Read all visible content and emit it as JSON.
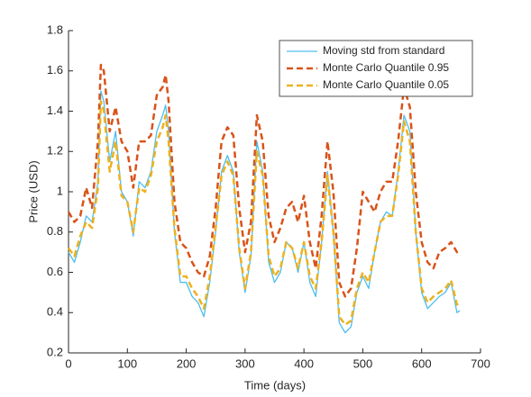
{
  "chart_data": {
    "type": "line",
    "xlabel": "Time (days)",
    "ylabel": "Price (USD)",
    "x": [
      0,
      10,
      20,
      30,
      40,
      50,
      55,
      60,
      70,
      80,
      90,
      100,
      110,
      120,
      130,
      140,
      150,
      160,
      165,
      170,
      180,
      190,
      200,
      210,
      220,
      230,
      240,
      250,
      260,
      270,
      280,
      290,
      300,
      310,
      320,
      330,
      340,
      350,
      360,
      370,
      380,
      390,
      400,
      410,
      420,
      430,
      440,
      450,
      460,
      470,
      480,
      490,
      500,
      510,
      520,
      530,
      540,
      550,
      560,
      570,
      580,
      590,
      600,
      610,
      620,
      630,
      640,
      650,
      660,
      665
    ],
    "series": [
      {
        "name": "Moving std from standard",
        "color": "#4DBEEE",
        "dash": false,
        "values": [
          0.7,
          0.65,
          0.75,
          0.88,
          0.85,
          1.05,
          1.5,
          1.45,
          1.15,
          1.3,
          1.0,
          0.95,
          0.78,
          1.05,
          1.02,
          1.1,
          1.3,
          1.38,
          1.43,
          1.3,
          0.8,
          0.55,
          0.55,
          0.48,
          0.45,
          0.38,
          0.55,
          0.8,
          1.1,
          1.18,
          1.1,
          0.7,
          0.5,
          0.68,
          1.25,
          1.1,
          0.65,
          0.55,
          0.6,
          0.75,
          0.72,
          0.6,
          0.75,
          0.55,
          0.48,
          0.75,
          1.1,
          0.8,
          0.35,
          0.3,
          0.33,
          0.5,
          0.58,
          0.52,
          0.7,
          0.85,
          0.9,
          0.88,
          1.1,
          1.38,
          1.3,
          0.8,
          0.5,
          0.42,
          0.45,
          0.48,
          0.5,
          0.55,
          0.4,
          0.41
        ]
      },
      {
        "name": "Monte Carlo Quantile 0.95",
        "color": "#D95319",
        "dash": true,
        "values": [
          0.9,
          0.85,
          0.88,
          1.02,
          0.92,
          1.25,
          1.63,
          1.6,
          1.3,
          1.42,
          1.25,
          1.2,
          1.02,
          1.25,
          1.25,
          1.28,
          1.48,
          1.52,
          1.58,
          1.45,
          0.95,
          0.75,
          0.72,
          0.65,
          0.6,
          0.58,
          0.68,
          0.92,
          1.25,
          1.32,
          1.28,
          0.92,
          0.7,
          0.85,
          1.38,
          1.25,
          0.88,
          0.75,
          0.82,
          0.92,
          0.95,
          0.85,
          0.98,
          0.75,
          0.62,
          0.88,
          1.25,
          1.0,
          0.55,
          0.48,
          0.52,
          0.72,
          1.0,
          0.95,
          0.9,
          1.0,
          1.05,
          1.05,
          1.25,
          1.52,
          1.42,
          1.0,
          0.75,
          0.65,
          0.62,
          0.7,
          0.72,
          0.75,
          0.7,
          0.69
        ]
      },
      {
        "name": "Monte Carlo Quantile 0.05",
        "color": "#EDB120",
        "dash": true,
        "values": [
          0.72,
          0.68,
          0.78,
          0.85,
          0.82,
          1.02,
          1.45,
          1.4,
          1.1,
          1.25,
          0.98,
          0.95,
          0.8,
          1.02,
          1.0,
          1.08,
          1.25,
          1.32,
          1.38,
          1.25,
          0.82,
          0.58,
          0.58,
          0.52,
          0.48,
          0.42,
          0.58,
          0.82,
          1.08,
          1.15,
          1.08,
          0.72,
          0.52,
          0.7,
          1.2,
          1.08,
          0.68,
          0.58,
          0.62,
          0.75,
          0.72,
          0.62,
          0.75,
          0.58,
          0.52,
          0.75,
          1.08,
          0.8,
          0.38,
          0.34,
          0.36,
          0.52,
          0.6,
          0.55,
          0.7,
          0.85,
          0.88,
          0.88,
          1.08,
          1.35,
          1.25,
          0.8,
          0.52,
          0.45,
          0.48,
          0.5,
          0.52,
          0.56,
          0.44,
          0.45
        ]
      }
    ],
    "xlim": [
      0,
      700
    ],
    "xticks": [
      0,
      100,
      200,
      300,
      400,
      500,
      600,
      700
    ],
    "ylim": [
      0.2,
      1.8
    ],
    "yticks": [
      0.2,
      0.4,
      0.6,
      0.8,
      1,
      1.2,
      1.4,
      1.6,
      1.8
    ],
    "legend": "northeast"
  }
}
